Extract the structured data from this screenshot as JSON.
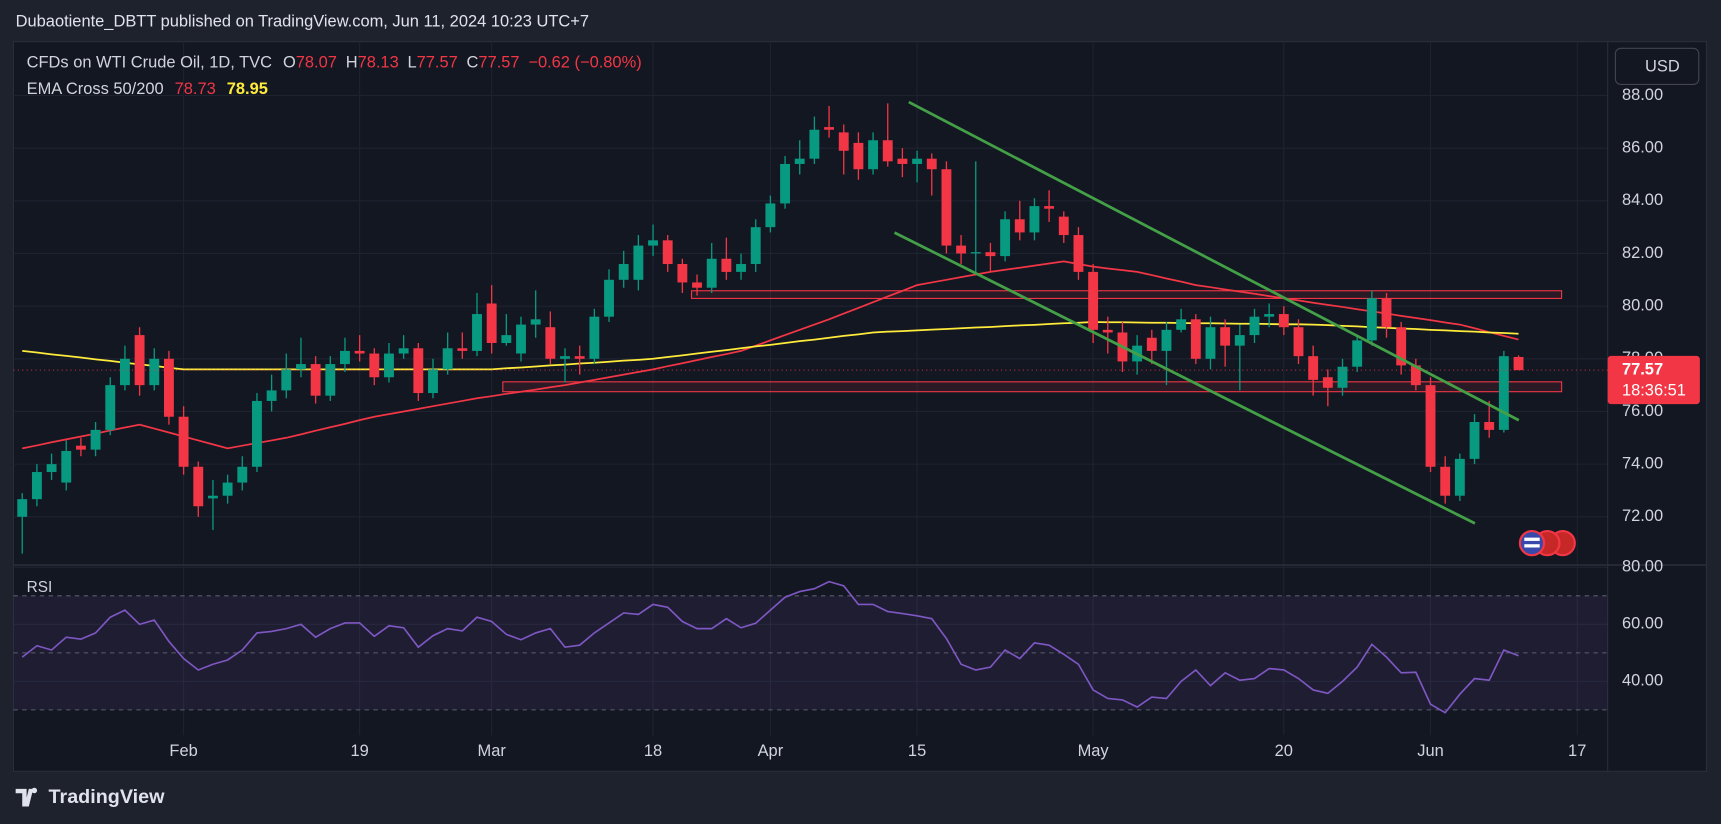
{
  "chart_data": {
    "type": "candlestick",
    "header": "Dubaotiente_DBTT published on TradingView.com, Jun 11, 2024 10:23 UTC+7",
    "symbol": "CFDs on WTI Crude Oil, 1D, TVC",
    "fields": [
      "O",
      "H",
      "L",
      "C"
    ],
    "change": {
      "value": -0.62,
      "pct": -0.8,
      "label": "−0.62 (−0.80%)"
    },
    "currency": "USD",
    "countdown": "18:36:51",
    "footer": "TradingView",
    "up_color": "#089981",
    "down_color": "#f23645",
    "grid": true,
    "categories": [
      null,
      null,
      null,
      null,
      null,
      null,
      null,
      null,
      null,
      null,
      null,
      "Feb",
      null,
      null,
      null,
      null,
      null,
      null,
      null,
      null,
      null,
      null,
      null,
      "19",
      null,
      null,
      null,
      null,
      null,
      null,
      null,
      null,
      "Mar",
      null,
      null,
      null,
      null,
      null,
      null,
      null,
      null,
      null,
      null,
      "18",
      null,
      null,
      null,
      null,
      null,
      null,
      null,
      "Apr",
      null,
      null,
      null,
      null,
      null,
      null,
      null,
      null,
      null,
      "15",
      null,
      null,
      null,
      null,
      null,
      null,
      null,
      null,
      null,
      null,
      null,
      "May",
      null,
      null,
      null,
      null,
      null,
      null,
      null,
      null,
      null,
      null,
      null,
      null,
      "20",
      null,
      null,
      null,
      null,
      null,
      null,
      null,
      null,
      null,
      "Jun",
      null,
      null,
      null,
      null,
      null,
      null,
      null,
      null,
      null,
      "17",
      null
    ],
    "open": [
      72.0,
      72.67,
      73.7,
      73.3,
      74.7,
      74.55,
      75.3,
      77.0,
      78.9,
      77.0,
      78.0,
      75.8,
      73.9,
      72.7,
      72.8,
      73.3,
      73.9,
      76.4,
      76.8,
      77.6,
      77.8,
      76.6,
      77.8,
      78.3,
      78.2,
      77.3,
      78.2,
      78.4,
      76.7,
      77.6,
      78.4,
      78.3,
      80.1,
      78.6,
      78.2,
      79.3,
      79.2,
      78.0,
      78.1,
      78.0,
      79.6,
      81.0,
      81.0,
      82.3,
      82.5,
      81.6,
      80.9,
      80.7,
      81.8,
      81.3,
      81.6,
      83.0,
      83.9,
      85.4,
      85.6,
      86.8,
      86.6,
      86.2,
      85.2,
      86.3,
      85.6,
      85.4,
      85.6,
      85.2,
      82.3,
      82.0,
      82.05,
      81.9,
      83.3,
      82.8,
      83.8,
      83.4,
      82.7,
      81.3,
      79.1,
      79.0,
      77.9,
      78.8,
      78.3,
      79.1,
      79.5,
      78.0,
      79.2,
      78.5,
      78.9,
      79.6,
      79.7,
      79.2,
      78.1,
      77.3,
      76.9,
      77.7,
      78.7,
      80.3,
      79.2,
      77.75,
      77.0,
      73.9,
      72.8,
      74.2,
      75.6,
      75.3,
      78.07,
      null,
      null,
      null,
      null,
      null
    ],
    "high": [
      72.9,
      74.0,
      74.4,
      74.9,
      75.0,
      75.6,
      77.3,
      78.5,
      79.2,
      78.4,
      78.3,
      76.2,
      74.1,
      73.4,
      73.6,
      74.3,
      76.7,
      77.4,
      78.2,
      78.8,
      78.1,
      78.1,
      78.8,
      78.9,
      78.4,
      78.6,
      78.9,
      78.6,
      78.0,
      79.0,
      79.0,
      80.5,
      80.8,
      79.7,
      79.6,
      80.6,
      79.8,
      78.4,
      78.5,
      79.9,
      81.4,
      82.1,
      82.7,
      83.1,
      82.7,
      81.8,
      81.2,
      82.4,
      82.6,
      82.0,
      83.3,
      84.2,
      85.7,
      86.3,
      87.2,
      87.6,
      86.9,
      86.6,
      86.6,
      87.7,
      86.0,
      85.9,
      85.8,
      85.5,
      82.7,
      85.5,
      82.4,
      83.6,
      84.0,
      84.1,
      84.4,
      83.6,
      83.0,
      81.6,
      79.6,
      79.4,
      78.9,
      79.1,
      79.4,
      79.9,
      79.7,
      79.6,
      79.5,
      79.3,
      79.9,
      80.1,
      80.0,
      79.5,
      78.5,
      77.6,
      78.0,
      78.9,
      80.6,
      80.5,
      79.4,
      78.0,
      77.3,
      74.3,
      74.4,
      75.9,
      76.4,
      78.3,
      78.13,
      null,
      null,
      null,
      null,
      null
    ],
    "low": [
      70.6,
      72.4,
      73.4,
      73.0,
      74.3,
      74.3,
      75.1,
      76.8,
      76.6,
      76.8,
      75.5,
      73.6,
      72.0,
      71.5,
      72.5,
      73.0,
      73.7,
      76.0,
      76.5,
      77.3,
      76.3,
      76.4,
      77.5,
      77.9,
      77.0,
      77.1,
      78.0,
      76.4,
      76.5,
      77.4,
      78.0,
      78.1,
      78.2,
      78.5,
      77.9,
      78.8,
      77.8,
      77.1,
      77.4,
      77.8,
      79.4,
      80.7,
      80.6,
      81.9,
      81.3,
      80.5,
      80.4,
      80.5,
      81.0,
      81.0,
      81.3,
      82.8,
      83.7,
      85.0,
      85.4,
      86.4,
      85.0,
      84.8,
      85.0,
      85.3,
      84.9,
      84.7,
      84.2,
      82.0,
      81.6,
      81.3,
      81.3,
      81.7,
      82.5,
      82.5,
      83.2,
      82.4,
      81.0,
      78.6,
      78.2,
      77.5,
      77.4,
      77.8,
      77.0,
      79.0,
      77.8,
      77.6,
      77.7,
      76.8,
      78.6,
      79.2,
      78.9,
      77.8,
      76.6,
      76.2,
      76.6,
      77.5,
      78.5,
      78.8,
      77.4,
      76.8,
      73.7,
      72.5,
      72.6,
      74.0,
      75.0,
      75.2,
      77.57,
      null,
      null,
      null,
      null,
      null
    ],
    "close": [
      72.67,
      73.7,
      74.0,
      74.5,
      74.55,
      75.3,
      77.0,
      78.0,
      77.0,
      78.0,
      75.8,
      73.9,
      72.4,
      72.8,
      73.3,
      73.9,
      76.4,
      76.8,
      77.6,
      77.8,
      76.6,
      77.8,
      78.3,
      78.2,
      77.3,
      78.2,
      78.4,
      76.7,
      77.6,
      78.4,
      78.3,
      79.7,
      78.6,
      78.9,
      79.3,
      79.5,
      78.0,
      78.1,
      78.0,
      79.6,
      81.0,
      81.6,
      82.3,
      82.5,
      81.6,
      80.9,
      80.7,
      81.8,
      81.3,
      81.6,
      83.0,
      83.9,
      85.4,
      85.6,
      86.7,
      86.7,
      85.9,
      85.2,
      86.3,
      85.5,
      85.4,
      85.6,
      85.2,
      82.3,
      82.0,
      82.05,
      81.9,
      83.3,
      82.8,
      83.8,
      83.7,
      82.7,
      81.3,
      79.1,
      79.0,
      77.9,
      78.5,
      78.3,
      79.1,
      79.5,
      78.0,
      79.2,
      78.5,
      78.9,
      79.6,
      79.7,
      79.2,
      78.1,
      77.2,
      76.9,
      77.7,
      78.7,
      80.3,
      79.2,
      77.75,
      77.0,
      73.9,
      72.8,
      74.2,
      75.6,
      75.3,
      78.1,
      77.57,
      null,
      null,
      null,
      null,
      null
    ],
    "ylim": [
      70.25,
      89.96
    ],
    "yticks": [
      {
        "value": 72,
        "label": "72.00"
      },
      {
        "value": 74,
        "label": "74.00"
      },
      {
        "value": 76,
        "label": "76.00"
      },
      {
        "value": 78,
        "label": "78.00"
      },
      {
        "value": 80,
        "label": "80.00"
      },
      {
        "value": 82,
        "label": "82.00"
      },
      {
        "value": 84,
        "label": "84.00"
      },
      {
        "value": 86,
        "label": "86.00"
      },
      {
        "value": 88,
        "label": "88.00"
      }
    ],
    "indicator": {
      "name": "EMA Cross 50/200",
      "series": [
        {
          "color": "#f23645",
          "values": [
            74.6,
            74.71,
            74.83,
            74.94,
            75.05,
            75.16,
            75.28,
            75.39,
            75.5,
            75.35,
            75.2,
            75.05,
            74.9,
            74.75,
            74.6,
            74.7,
            74.8,
            74.9,
            75.0,
            75.13,
            75.27,
            75.4,
            75.53,
            75.67,
            75.8,
            75.9,
            76.0,
            76.1,
            76.2,
            76.3,
            76.4,
            76.5,
            76.58,
            76.67,
            76.75,
            76.83,
            76.92,
            77.0,
            77.1,
            77.2,
            77.3,
            77.4,
            77.5,
            77.6,
            77.72,
            77.83,
            77.95,
            78.07,
            78.18,
            78.3,
            78.5,
            78.7,
            78.9,
            79.1,
            79.3,
            79.5,
            79.72,
            79.93,
            80.15,
            80.37,
            80.58,
            80.8,
            80.9,
            81.0,
            81.1,
            81.2,
            81.3,
            81.38,
            81.46,
            81.54,
            81.62,
            81.7,
            81.6,
            81.5,
            81.43,
            81.37,
            81.3,
            81.18,
            81.05,
            80.93,
            80.8,
            80.72,
            80.63,
            80.55,
            80.47,
            80.38,
            80.3,
            80.22,
            80.13,
            80.05,
            79.97,
            79.88,
            79.8,
            79.72,
            79.63,
            79.55,
            79.47,
            79.38,
            79.3,
            79.16,
            79.01,
            78.87,
            78.73,
            null,
            null,
            null,
            null,
            null
          ]
        },
        {
          "color": "#ffeb3b",
          "values": [
            78.3,
            78.24,
            78.17,
            78.11,
            78.05,
            77.98,
            77.92,
            77.85,
            77.79,
            77.73,
            77.66,
            77.6,
            77.6,
            77.6,
            77.6,
            77.6,
            77.6,
            77.6,
            77.6,
            77.6,
            77.6,
            77.6,
            77.6,
            77.6,
            77.6,
            77.6,
            77.6,
            77.6,
            77.6,
            77.6,
            77.6,
            77.6,
            77.6,
            77.64,
            77.67,
            77.71,
            77.75,
            77.78,
            77.82,
            77.85,
            77.89,
            77.93,
            77.96,
            78.0,
            78.07,
            78.13,
            78.2,
            78.27,
            78.33,
            78.4,
            78.47,
            78.53,
            78.6,
            78.67,
            78.73,
            78.8,
            78.87,
            78.93,
            79.0,
            79.03,
            79.05,
            79.08,
            79.11,
            79.13,
            79.16,
            79.19,
            79.21,
            79.24,
            79.27,
            79.29,
            79.32,
            79.35,
            79.37,
            79.4,
            79.39,
            79.39,
            79.38,
            79.37,
            79.37,
            79.36,
            79.35,
            79.35,
            79.34,
            79.33,
            79.33,
            79.32,
            79.31,
            79.31,
            79.3,
            79.28,
            79.25,
            79.23,
            79.2,
            79.18,
            79.15,
            79.13,
            79.1,
            79.08,
            79.05,
            79.03,
            79.0,
            78.98,
            78.95,
            null,
            null,
            null,
            null,
            null
          ]
        }
      ]
    },
    "rsi": {
      "name": "RSI",
      "color": "#7e57c2",
      "values": [
        48.5,
        52.5,
        51,
        55.5,
        54.8,
        57,
        62.5,
        65,
        60,
        61.5,
        54,
        48,
        44,
        46,
        47.5,
        51,
        57,
        57.5,
        58.5,
        60,
        55.5,
        58.5,
        60.5,
        60.5,
        55.8,
        59.5,
        58.8,
        52,
        56,
        58.5,
        57.7,
        62.5,
        61,
        56.5,
        54.6,
        57,
        58.5,
        52,
        52.7,
        57,
        60.5,
        64,
        63.5,
        67,
        66,
        61,
        58.5,
        58.5,
        62,
        58.8,
        60.4,
        65,
        69.5,
        71.5,
        72.5,
        75,
        73.5,
        67,
        67,
        64.5,
        63.8,
        63,
        62,
        55,
        46,
        44,
        45,
        51,
        48,
        53.5,
        52.7,
        49.5,
        46,
        37,
        34,
        33.5,
        31,
        34.5,
        34,
        40,
        44,
        38.5,
        43,
        40.4,
        41,
        44.5,
        44,
        41,
        37,
        35.8,
        40,
        45,
        53,
        48.5,
        43,
        43.2,
        32,
        29,
        35.5,
        41,
        40.4,
        51,
        49,
        null,
        null,
        null,
        null,
        null
      ],
      "ylim": [
        9.6,
        80.8
      ],
      "yticks": [
        {
          "value": 40,
          "label": "40.00"
        },
        {
          "value": 60,
          "label": "60.00"
        },
        {
          "value": 80,
          "label": "80.00"
        }
      ],
      "levels": [
        70,
        50,
        30
      ]
    }
  }
}
